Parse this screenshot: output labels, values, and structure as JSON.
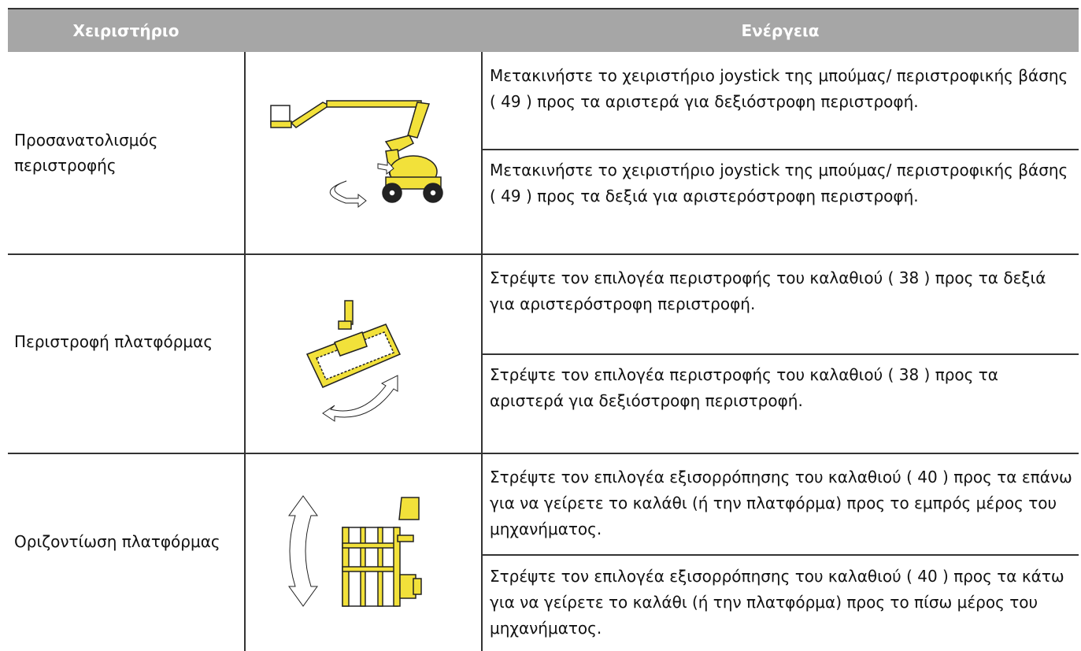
{
  "header": {
    "columns": [
      "Χειριστήριο",
      "Ενέργεια"
    ]
  },
  "rows": [
    {
      "control": "Προσανατολισμός περιστροφής",
      "actions": [
        "Μετακινήστε το χειριστήριο joystick της μπούμας/ περιστροφικής βάσης ( 49 ) προς τα αριστερά για δεξιόστροφη περιστροφή.",
        "Μετακινήστε το χειριστήριο joystick της μπούμας/ περιστροφικής βάσης ( 49 ) προς τα δεξιά για αριστερόστροφη περιστροφή."
      ]
    },
    {
      "control": "Περιστροφή πλατφόρμας",
      "actions": [
        "Στρέψτε τον επιλογέα περιστροφής του καλαθιού ( 38 ) προς τα δεξιά για αριστερόστροφη περιστροφή.",
        "Στρέψτε τον επιλογέα περιστροφής του καλαθιού ( 38 ) προς τα αριστερά για δεξιόστροφη περιστροφή."
      ]
    },
    {
      "control": "Οριζοντίωση πλατφόρμας",
      "actions": [
        "Στρέψτε τον επιλογέα εξισορρόπησης του καλαθιού ( 40 ) προς τα επάνω για να γείρετε το καλάθι (ή την πλατφόρμα) προς το εμπρός μέρος του μηχανήματος.",
        "Στρέψτε τον επιλογέα εξισορρόπησης του καλαθιού ( 40 ) προς τα κάτω για να γείρετε το καλάθι (ή την πλατφόρμα) προς το πίσω μέρος του μηχανήματος."
      ]
    }
  ]
}
